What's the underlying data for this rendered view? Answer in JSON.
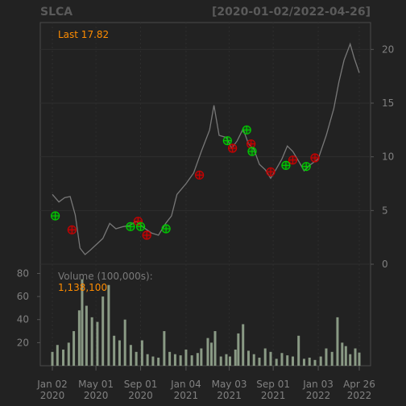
{
  "chart_data": {
    "type": "line",
    "title": "SLCA",
    "date_range": "[2020-01-02/2022-04-26]",
    "last_label": "Last 17.82",
    "last_value": 17.82,
    "price_yaxis": {
      "ticks": [
        "20",
        "15",
        "10",
        "5",
        "0"
      ],
      "ylim": [
        0,
        22.5
      ]
    },
    "volume_label": "Volume (100,000s):",
    "volume_value": "1,138,100",
    "volume_yaxis": {
      "ticks": [
        "80",
        "60",
        "40",
        "20"
      ],
      "ylim": [
        0,
        88
      ]
    },
    "x_ticks": [
      {
        "date": "2020-01-02",
        "line1": "Jan 02",
        "line2": "2020"
      },
      {
        "date": "2020-05-01",
        "line1": "May 01",
        "line2": "2020"
      },
      {
        "date": "2020-09-01",
        "line1": "Sep 01",
        "line2": "2020"
      },
      {
        "date": "2021-01-04",
        "line1": "Jan 04",
        "line2": "2021"
      },
      {
        "date": "2021-05-03",
        "line1": "May 03",
        "line2": "2021"
      },
      {
        "date": "2021-09-01",
        "line1": "Sep 01",
        "line2": "2021"
      },
      {
        "date": "2022-01-03",
        "line1": "Jan 03",
        "line2": "2022"
      },
      {
        "date": "2022-04-26",
        "line1": "Apr 26",
        "line2": "2022"
      }
    ],
    "price_series": {
      "name": "SLCA",
      "color": "#787878",
      "points": [
        [
          "2020-01-02",
          6.5
        ],
        [
          "2020-01-20",
          5.8
        ],
        [
          "2020-02-05",
          6.2
        ],
        [
          "2020-02-20",
          6.3
        ],
        [
          "2020-03-05",
          4.6
        ],
        [
          "2020-03-18",
          1.5
        ],
        [
          "2020-04-01",
          0.9
        ],
        [
          "2020-04-15",
          1.3
        ],
        [
          "2020-05-01",
          1.8
        ],
        [
          "2020-05-20",
          2.4
        ],
        [
          "2020-06-08",
          3.8
        ],
        [
          "2020-06-25",
          3.3
        ],
        [
          "2020-07-15",
          3.5
        ],
        [
          "2020-08-01",
          3.6
        ],
        [
          "2020-08-20",
          4.0
        ],
        [
          "2020-09-10",
          3.4
        ],
        [
          "2020-10-01",
          2.9
        ],
        [
          "2020-10-20",
          2.7
        ],
        [
          "2020-11-09",
          3.8
        ],
        [
          "2020-11-25",
          4.5
        ],
        [
          "2020-12-10",
          6.5
        ],
        [
          "2021-01-04",
          7.5
        ],
        [
          "2021-01-25",
          8.5
        ],
        [
          "2021-02-15",
          10.5
        ],
        [
          "2021-03-10",
          12.5
        ],
        [
          "2021-03-22",
          14.8
        ],
        [
          "2021-04-05",
          12.0
        ],
        [
          "2021-04-25",
          11.8
        ],
        [
          "2021-05-10",
          10.8
        ],
        [
          "2021-05-25",
          11.5
        ],
        [
          "2021-06-10",
          12.6
        ],
        [
          "2021-06-25",
          11.2
        ],
        [
          "2021-07-10",
          10.7
        ],
        [
          "2021-07-25",
          9.3
        ],
        [
          "2021-08-10",
          8.8
        ],
        [
          "2021-08-25",
          8.0
        ],
        [
          "2021-09-10",
          8.9
        ],
        [
          "2021-09-25",
          9.8
        ],
        [
          "2021-10-10",
          11.0
        ],
        [
          "2021-10-25",
          10.5
        ],
        [
          "2021-11-10",
          9.6
        ],
        [
          "2021-11-25",
          8.7
        ],
        [
          "2021-12-10",
          9.2
        ],
        [
          "2022-01-03",
          9.8
        ],
        [
          "2022-01-25",
          12.0
        ],
        [
          "2022-02-15",
          14.5
        ],
        [
          "2022-03-01",
          17.0
        ],
        [
          "2022-03-15",
          19.0
        ],
        [
          "2022-04-01",
          20.5
        ],
        [
          "2022-04-12",
          19.2
        ],
        [
          "2022-04-26",
          17.82
        ]
      ]
    },
    "markers": {
      "buy_color": "#00cc00",
      "sell_color": "#cc0000",
      "buy": [
        [
          "2020-01-10",
          4.5
        ],
        [
          "2020-08-04",
          3.5
        ],
        [
          "2020-09-01",
          3.5
        ],
        [
          "2020-11-10",
          3.3
        ],
        [
          "2021-04-28",
          11.5
        ],
        [
          "2021-06-20",
          12.5
        ],
        [
          "2021-07-05",
          10.5
        ],
        [
          "2021-10-06",
          9.2
        ],
        [
          "2021-12-01",
          9.1
        ]
      ],
      "sell": [
        [
          "2020-02-25",
          3.2
        ],
        [
          "2020-08-25",
          4.0
        ],
        [
          "2020-09-18",
          2.7
        ],
        [
          "2021-02-10",
          8.3
        ],
        [
          "2021-05-12",
          10.8
        ],
        [
          "2021-07-02",
          11.2
        ],
        [
          "2021-08-25",
          8.6
        ],
        [
          "2021-10-25",
          9.7
        ],
        [
          "2021-12-25",
          9.9
        ]
      ]
    },
    "volume_series": {
      "name": "Volume",
      "color": "#8a9a85",
      "bars": [
        [
          "2020-01-02",
          12
        ],
        [
          "2020-01-16",
          18
        ],
        [
          "2020-02-01",
          14
        ],
        [
          "2020-02-16",
          20
        ],
        [
          "2020-03-01",
          30
        ],
        [
          "2020-03-16",
          48
        ],
        [
          "2020-03-24",
          75
        ],
        [
          "2020-04-05",
          52
        ],
        [
          "2020-04-20",
          42
        ],
        [
          "2020-05-05",
          38
        ],
        [
          "2020-05-20",
          60
        ],
        [
          "2020-06-05",
          70
        ],
        [
          "2020-06-20",
          26
        ],
        [
          "2020-07-05",
          22
        ],
        [
          "2020-07-20",
          40
        ],
        [
          "2020-08-05",
          18
        ],
        [
          "2020-08-20",
          12
        ],
        [
          "2020-09-05",
          22
        ],
        [
          "2020-09-20",
          10
        ],
        [
          "2020-10-05",
          8
        ],
        [
          "2020-10-20",
          7
        ],
        [
          "2020-11-05",
          30
        ],
        [
          "2020-11-20",
          12
        ],
        [
          "2020-12-05",
          10
        ],
        [
          "2020-12-20",
          9
        ],
        [
          "2021-01-04",
          14
        ],
        [
          "2021-01-20",
          9
        ],
        [
          "2021-02-05",
          11
        ],
        [
          "2021-02-15",
          15
        ],
        [
          "2021-03-05",
          24
        ],
        [
          "2021-03-15",
          20
        ],
        [
          "2021-03-25",
          30
        ],
        [
          "2021-04-10",
          8
        ],
        [
          "2021-04-25",
          10
        ],
        [
          "2021-05-05",
          8
        ],
        [
          "2021-05-20",
          14
        ],
        [
          "2021-05-28",
          28
        ],
        [
          "2021-06-10",
          36
        ],
        [
          "2021-06-25",
          13
        ],
        [
          "2021-07-10",
          10
        ],
        [
          "2021-07-25",
          7
        ],
        [
          "2021-08-10",
          15
        ],
        [
          "2021-08-25",
          12
        ],
        [
          "2021-09-10",
          6
        ],
        [
          "2021-09-25",
          11
        ],
        [
          "2021-10-10",
          9
        ],
        [
          "2021-10-25",
          8
        ],
        [
          "2021-11-10",
          26
        ],
        [
          "2021-11-25",
          6
        ],
        [
          "2021-12-10",
          7
        ],
        [
          "2021-12-25",
          5
        ],
        [
          "2022-01-10",
          8
        ],
        [
          "2022-01-25",
          15
        ],
        [
          "2022-02-10",
          12
        ],
        [
          "2022-02-25",
          42
        ],
        [
          "2022-03-10",
          20
        ],
        [
          "2022-03-20",
          17
        ],
        [
          "2022-04-01",
          10
        ],
        [
          "2022-04-15",
          15
        ],
        [
          "2022-04-26",
          11.4
        ]
      ]
    }
  }
}
